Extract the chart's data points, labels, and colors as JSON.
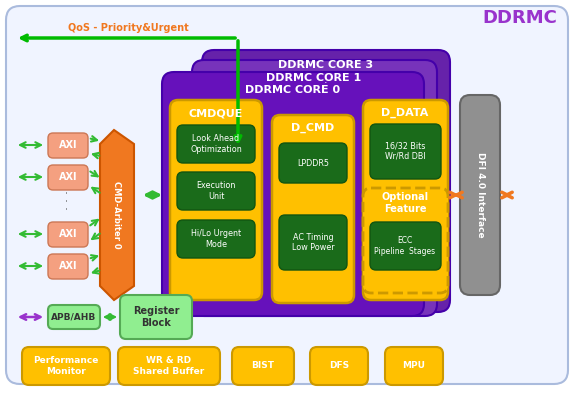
{
  "bg_color": "#ffffff",
  "outer_border_color": "#aabbdd",
  "outer_fill": "#f0f4ff",
  "purple_dark": "#6622aa",
  "purple_mid": "#7733bb",
  "purple_front": "#5511aa",
  "gold": "#ffc000",
  "gold_ec": "#cc9900",
  "dark_green_fill": "#1a6b1a",
  "dark_green_ec": "#115511",
  "orange_fill": "#f07820",
  "salmon_fill": "#f4a080",
  "salmon_ec": "#cc7755",
  "light_green_fill": "#90ee90",
  "light_green_ec": "#55aa55",
  "gray_fill": "#909090",
  "gray_ec": "#666666",
  "green_arrow": "#33bb33",
  "green_arrow2": "#00bb00",
  "orange_arrow": "#f07820",
  "purple_arrow": "#9933cc",
  "ddrmc_label": "DDRMC",
  "ddrmc_color": "#9933cc",
  "qos_label": "QoS - Priority&Urgent",
  "qos_color": "#f07820",
  "dfi_label": "DFI 4.0 Interface",
  "cmd_arbiter": "CMD-Arbiter 0",
  "axi_labels": [
    "AXI",
    "AXI",
    "AXI",
    "AXI"
  ],
  "apb_label": "APB/AHB",
  "reg_block_label": "Register\nBlock",
  "core_labels": [
    "DDRMC CORE 3",
    "DDRMC CORE 1",
    "DDRMC CORE 0"
  ],
  "cmdque_label": "CMDQUE",
  "dcmd_label": "D_CMD",
  "ddata_label": "D_DATA",
  "cmdque_items": [
    "Look Ahead\nOptimization",
    "Execution\nUnit",
    "Hi/Lo Urgent\nMode"
  ],
  "dcmd_items": [
    "LPDDR5",
    "AC Timing\nLow Power"
  ],
  "ddata_top": "16/32 Bits\nWr/Rd DBI",
  "optional_label": "Optional\nFeature",
  "ecc_label": "ECC\nPipeline  Stages",
  "bottom_boxes": [
    "Performance\nMonitor",
    "WR & RD\nShared Buffer",
    "BIST",
    "DFS",
    "MPU"
  ]
}
